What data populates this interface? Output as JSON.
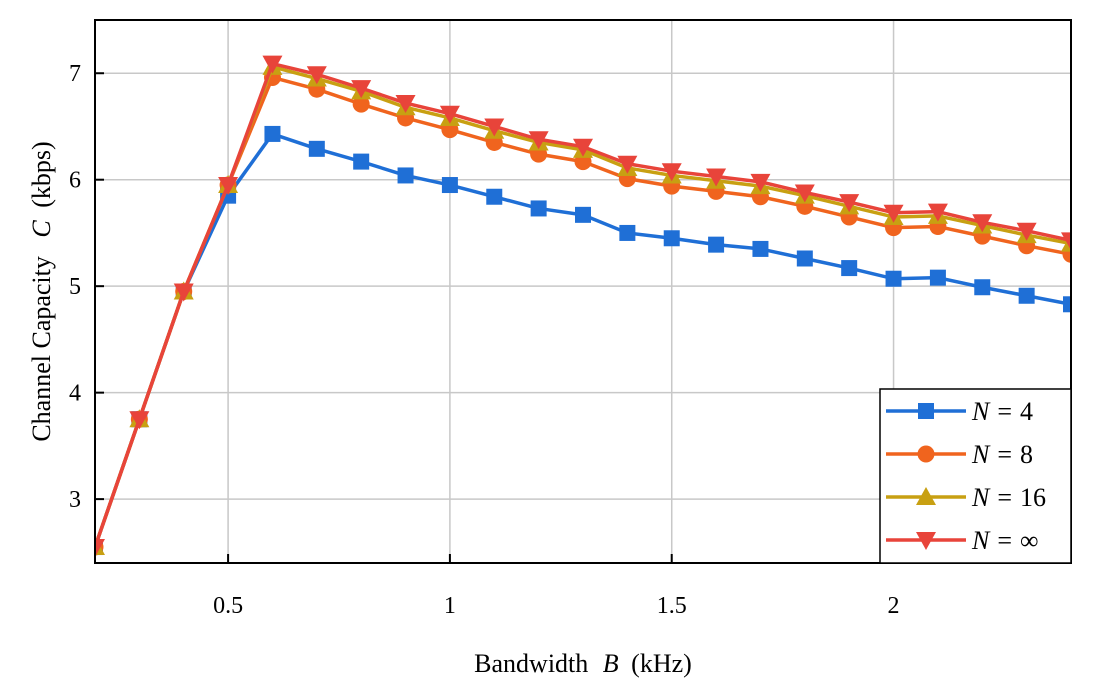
{
  "chart_data": {
    "type": "line",
    "xlabel": {
      "prefix": "Bandwidth",
      "var": "B",
      "unit": "(kHz)"
    },
    "ylabel": {
      "prefix": "Channel Capacity",
      "var": "C",
      "unit": "(kbps)"
    },
    "xlim": [
      0.2,
      2.4
    ],
    "ylim": [
      2.4,
      7.5
    ],
    "xticks": [
      0.5,
      1,
      1.5,
      2
    ],
    "xtick_labels": [
      "0.5",
      "1",
      "1.5",
      "2"
    ],
    "yticks": [
      3,
      4,
      5,
      6,
      7
    ],
    "ytick_labels": [
      "3",
      "4",
      "5",
      "6",
      "7"
    ],
    "grid": true,
    "legend_position": "bottom-right",
    "x": [
      0.2,
      0.3,
      0.4,
      0.5,
      0.6,
      0.7,
      0.8,
      0.9,
      1.0,
      1.1,
      1.2,
      1.3,
      1.4,
      1.5,
      1.6,
      1.7,
      1.8,
      1.9,
      2.0,
      2.1,
      2.2,
      2.3,
      2.4
    ],
    "series": [
      {
        "var": "N",
        "eq": "=",
        "val": "4",
        "color": "#1f6fd6",
        "marker": "square",
        "values": [
          2.55,
          3.75,
          4.95,
          5.85,
          6.43,
          6.29,
          6.17,
          6.04,
          5.95,
          5.84,
          5.73,
          5.67,
          5.5,
          5.45,
          5.39,
          5.35,
          5.26,
          5.17,
          5.07,
          5.08,
          4.99,
          4.91,
          4.83
        ]
      },
      {
        "var": "N",
        "eq": "=",
        "val": "8",
        "color": "#f0641e",
        "marker": "circle",
        "values": [
          2.55,
          3.75,
          4.95,
          5.95,
          6.96,
          6.85,
          6.71,
          6.58,
          6.47,
          6.35,
          6.24,
          6.17,
          6.01,
          5.94,
          5.89,
          5.84,
          5.75,
          5.65,
          5.55,
          5.56,
          5.47,
          5.38,
          5.3
        ]
      },
      {
        "var": "N",
        "eq": "=",
        "val": "16",
        "color": "#c8a012",
        "marker": "triangle-up",
        "values": [
          2.55,
          3.75,
          4.95,
          5.95,
          7.06,
          6.95,
          6.83,
          6.68,
          6.58,
          6.46,
          6.35,
          6.28,
          6.11,
          6.04,
          5.99,
          5.94,
          5.85,
          5.75,
          5.65,
          5.66,
          5.57,
          5.48,
          5.4
        ]
      },
      {
        "var": "N",
        "eq": "=",
        "val": "∞",
        "color": "#e8443a",
        "marker": "triangle-down",
        "values": [
          2.55,
          3.75,
          4.95,
          5.95,
          7.09,
          6.99,
          6.86,
          6.72,
          6.62,
          6.5,
          6.38,
          6.31,
          6.15,
          6.08,
          6.03,
          5.98,
          5.88,
          5.79,
          5.69,
          5.7,
          5.6,
          5.52,
          5.43
        ]
      }
    ]
  }
}
